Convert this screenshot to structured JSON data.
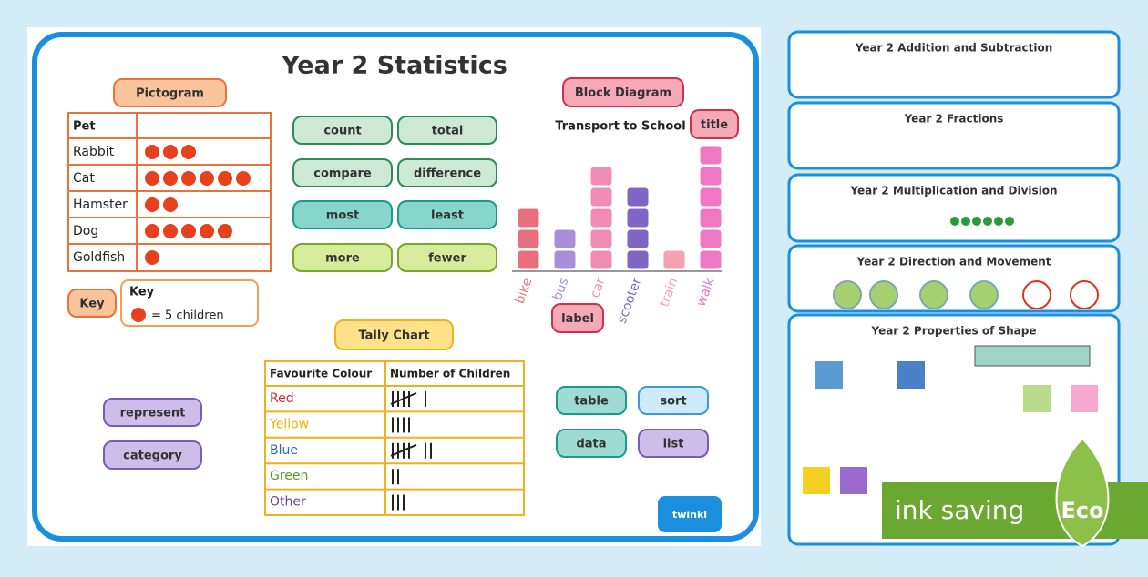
{
  "title": "Year 2 Statistics",
  "pictogram": {
    "label": "Pictogram",
    "header": "Pet",
    "rows": [
      {
        "pet": "Rabbit",
        "count": 3
      },
      {
        "pet": "Cat",
        "count": 6
      },
      {
        "pet": "Hamster",
        "count": 2
      },
      {
        "pet": "Dog",
        "count": 5
      },
      {
        "pet": "Goldfish",
        "count": 1
      }
    ],
    "key_button": "Key",
    "key_title": "Key",
    "key_text": "= 5 children"
  },
  "vocabulary": [
    "count",
    "total",
    "compare",
    "difference",
    "most",
    "least",
    "more",
    "fewer",
    "represent",
    "category",
    "table",
    "sort",
    "data",
    "list"
  ],
  "block_diagram": {
    "label": "Block Diagram",
    "chart_title": "Transport to School",
    "title_tag": "title",
    "label_tag": "label",
    "categories": [
      "bike",
      "bus",
      "car",
      "scooter",
      "train",
      "walk"
    ],
    "values": [
      3,
      2,
      5,
      4,
      1,
      6
    ],
    "colors": [
      "#e8707e",
      "#a88ed8",
      "#f08cb4",
      "#8066c4",
      "#f4a2b2",
      "#ee78c4"
    ]
  },
  "tally_chart": {
    "label": "Tally Chart",
    "headers": [
      "Favourite Colour",
      "Number of Children"
    ],
    "rows": [
      {
        "colour": "Red",
        "count": 6,
        "color": "#d62828"
      },
      {
        "colour": "Yellow",
        "count": 4,
        "color": "#e8b400"
      },
      {
        "colour": "Blue",
        "count": 7,
        "color": "#1f6fc4"
      },
      {
        "colour": "Green",
        "count": 2,
        "color": "#5a9a2a"
      },
      {
        "colour": "Other",
        "count": 3,
        "color": "#6a3fa0"
      }
    ]
  },
  "badge": "twinkl",
  "thumbnails": [
    "Year 2 Addition and Subtraction",
    "Year 2 Fractions",
    "Year 2 Multiplication and Division",
    "Year 2 Direction and Movement",
    "Year 2 Properties of Shape"
  ],
  "eco": {
    "text": "ink saving",
    "tag": "Eco"
  }
}
